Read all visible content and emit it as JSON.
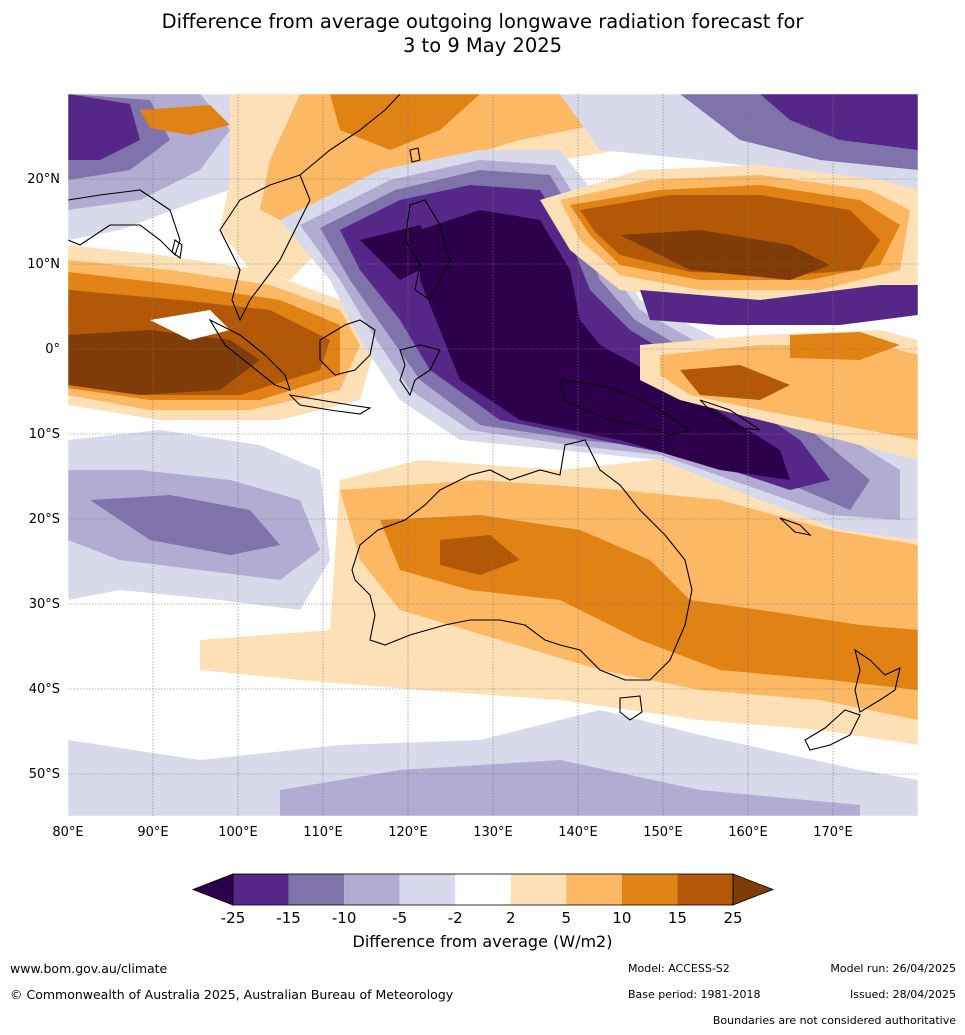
{
  "title": {
    "line1": "Difference from average outgoing longwave radiation forecast for",
    "line2": "3 to 9 May 2025"
  },
  "map": {
    "lon_range": [
      80,
      180
    ],
    "lat_range": [
      -55,
      30
    ],
    "lon_ticks": [
      "80°E",
      "90°E",
      "100°E",
      "110°E",
      "120°E",
      "130°E",
      "140°E",
      "150°E",
      "160°E",
      "170°E"
    ],
    "lat_ticks": [
      "20°N",
      "10°N",
      "0°",
      "10°S",
      "20°S",
      "30°S",
      "40°S",
      "50°S"
    ]
  },
  "colorbar": {
    "ticks": [
      "-25",
      "-15",
      "-10",
      "-5",
      "-2",
      "2",
      "5",
      "10",
      "15",
      "25"
    ],
    "colors": [
      "#2d004b",
      "#542788",
      "#8073ac",
      "#b2abd2",
      "#d8daeb",
      "#ffffff",
      "#fee0b6",
      "#fdb863",
      "#e08214",
      "#b35806",
      "#7f3b08"
    ],
    "label": "Difference from average (W/m2)"
  },
  "footer": {
    "website": "www.bom.gov.au/climate",
    "copyright": "© Commonwealth of Australia 2025, Australian Bureau of Meteorology",
    "model": "Model: ACCESS-S2",
    "base_period": "Base period: 1981-2018",
    "model_run": "Model run: 26/04/2025",
    "issued": "Issued: 28/04/2025",
    "disclaimer": "Boundaries are not considered authoritative"
  }
}
